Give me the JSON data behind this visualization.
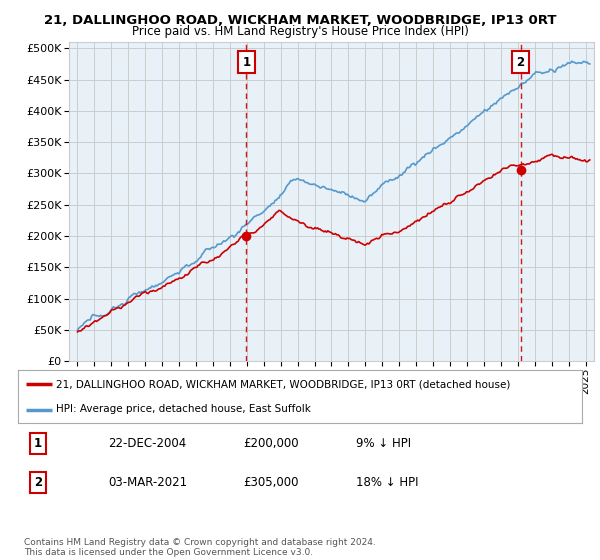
{
  "title1": "21, DALLINGHOO ROAD, WICKHAM MARKET, WOODBRIDGE, IP13 0RT",
  "title2": "Price paid vs. HM Land Registry's House Price Index (HPI)",
  "legend_line1": "21, DALLINGHOO ROAD, WICKHAM MARKET, WOODBRIDGE, IP13 0RT (detached house)",
  "legend_line2": "HPI: Average price, detached house, East Suffolk",
  "annotation1_label": "1",
  "annotation1_date": "22-DEC-2004",
  "annotation1_price": "£200,000",
  "annotation1_hpi": "9% ↓ HPI",
  "annotation2_label": "2",
  "annotation2_date": "03-MAR-2021",
  "annotation2_price": "£305,000",
  "annotation2_hpi": "18% ↓ HPI",
  "footer": "Contains HM Land Registry data © Crown copyright and database right 2024.\nThis data is licensed under the Open Government Licence v3.0.",
  "purchase1_x": 2004.97,
  "purchase1_y": 200000,
  "purchase2_x": 2021.17,
  "purchase2_y": 305000,
  "line_red_color": "#cc0000",
  "line_blue_color": "#5599cc",
  "vline_color": "#cc0000",
  "grid_color": "#cccccc",
  "chart_bg_color": "#e8f0f8",
  "background_color": "#ffffff",
  "ylim": [
    0,
    510000
  ],
  "xlim_start": 1994.5,
  "xlim_end": 2025.5,
  "seed": 12345
}
